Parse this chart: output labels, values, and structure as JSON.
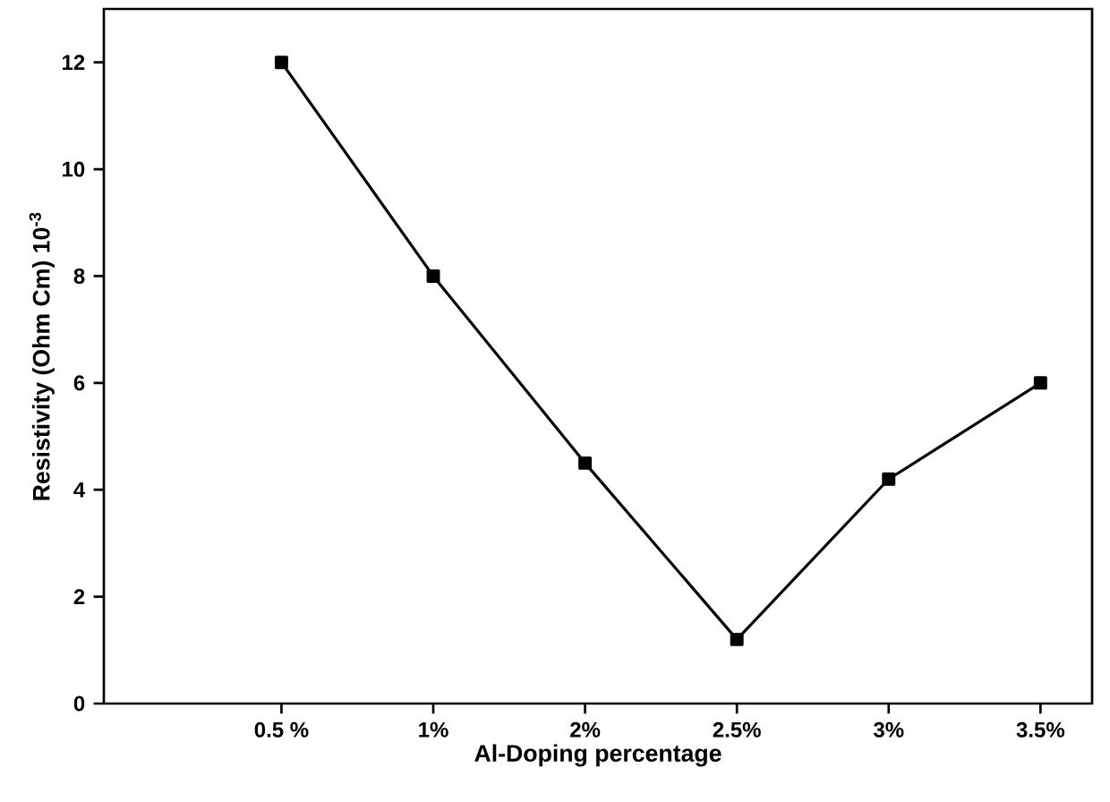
{
  "chart_data": {
    "type": "line",
    "xlabel": "Al-Doping percentage",
    "ylabel": "Resistivity (Ohm Cm) 10$^{-3}$",
    "categories": [
      "0.5 %",
      "1%",
      "2%",
      "2.5%",
      "3%",
      "3.5%"
    ],
    "series": [
      {
        "color": "#000000",
        "values": [
          12,
          8,
          4.5,
          1.2,
          4.2,
          6
        ]
      }
    ],
    "ylim": [
      0,
      13
    ],
    "yticks": [
      0,
      2,
      4,
      6,
      8,
      10,
      12
    ],
    "marker": "square",
    "line_style": "solid",
    "grid": false
  }
}
